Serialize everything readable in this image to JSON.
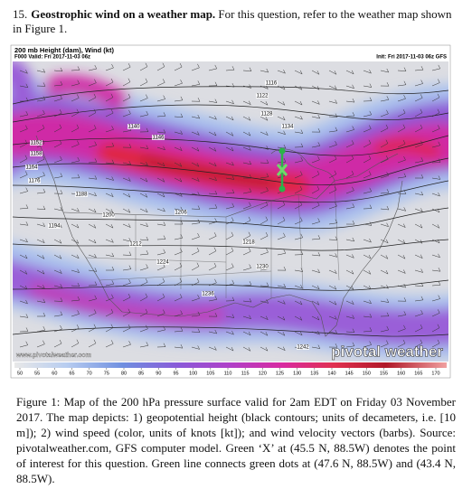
{
  "question": {
    "number": "15.",
    "title": "Geostrophic wind on a weather map.",
    "text": "For this question, refer to the weather map shown in Figure 1."
  },
  "figure": {
    "title": "200 mb Height (dam), Wind (kt)",
    "valid": "F000 Valid: Fri 2017-11-03 06z",
    "init": "Init: Fri 2017-11-03 06z GFS",
    "contour_labels": [
      "1116",
      "1122",
      "1128",
      "1134",
      "1140",
      "1146",
      "1152",
      "1158",
      "1164",
      "1176",
      "1188",
      "1194",
      "1200",
      "1206",
      "1212",
      "1218",
      "1224",
      "1230",
      "1236",
      "1242"
    ],
    "watermark": "www.pivotalweather.com",
    "logo": "pivotal weather",
    "colorbar_ticks": [
      50,
      55,
      60,
      65,
      70,
      75,
      80,
      85,
      90,
      95,
      100,
      105,
      110,
      115,
      120,
      125,
      130,
      135,
      140,
      145,
      150,
      155,
      160,
      165,
      170
    ]
  },
  "caption": {
    "label": "Figure 1:",
    "text": "Map of the 200 hPa pressure surface valid for 2am EDT on Friday 03 November 2017. The map depicts: 1) geopotential height (black contours; units of decameters, i.e. [10 m]); 2) wind speed (color, units of knots [kt]); and wind velocity vectors (barbs). Source: pivotalweather.com, GFS computer model. Green ‘X’ at (45.5 N, 88.5W) denotes the point of interest for this question. Green line connects green dots at (47.6 N, 88.5W) and (43.4 N, 88.5W)."
  }
}
